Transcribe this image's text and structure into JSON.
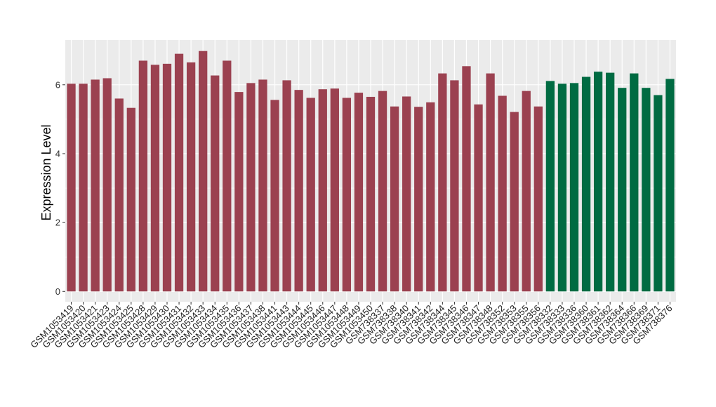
{
  "chart_data": {
    "type": "bar",
    "title": "",
    "xlabel": "",
    "ylabel": "Expression Level",
    "ylim": [
      -0.3,
      7.3
    ],
    "yticks": [
      0,
      2,
      4,
      6
    ],
    "grid": true,
    "legend": "none",
    "categories": [
      "GSM1053419",
      "GSM1053420",
      "GSM1053421",
      "GSM1053423",
      "GSM1053424",
      "GSM1053425",
      "GSM1053428",
      "GSM1053429",
      "GSM1053430",
      "GSM1053431",
      "GSM1053432",
      "GSM1053433",
      "GSM1053434",
      "GSM1053435",
      "GSM1053436",
      "GSM1053437",
      "GSM1053438",
      "GSM1053441",
      "GSM1053443",
      "GSM1053444",
      "GSM1053445",
      "GSM1053446",
      "GSM1053447",
      "GSM1053448",
      "GSM1053449",
      "GSM1053450",
      "GSM738337",
      "GSM738338",
      "GSM738340",
      "GSM738341",
      "GSM738342",
      "GSM738344",
      "GSM738345",
      "GSM738346",
      "GSM738347",
      "GSM738348",
      "GSM738352",
      "GSM738353",
      "GSM738355",
      "GSM738356",
      "GSM738332",
      "GSM738333",
      "GSM738336",
      "GSM738360",
      "GSM738361",
      "GSM738362",
      "GSM738364",
      "GSM738366",
      "GSM738369",
      "GSM738371",
      "GSM738376"
    ],
    "values": [
      6.03,
      6.03,
      6.15,
      6.19,
      5.6,
      5.33,
      6.7,
      6.58,
      6.61,
      6.9,
      6.65,
      6.98,
      6.27,
      6.7,
      5.79,
      6.05,
      6.15,
      5.56,
      6.13,
      5.85,
      5.62,
      5.87,
      5.89,
      5.62,
      5.77,
      5.65,
      5.82,
      5.37,
      5.66,
      5.36,
      5.49,
      6.33,
      6.13,
      6.54,
      5.43,
      6.33,
      5.68,
      5.21,
      5.82,
      5.37,
      6.11,
      6.03,
      6.05,
      6.23,
      6.38,
      6.35,
      5.91,
      6.33,
      5.91,
      5.7,
      6.17
    ],
    "colors": [
      "#9b4150",
      "#9b4150",
      "#9b4150",
      "#9b4150",
      "#9b4150",
      "#9b4150",
      "#9b4150",
      "#9b4150",
      "#9b4150",
      "#9b4150",
      "#9b4150",
      "#9b4150",
      "#9b4150",
      "#9b4150",
      "#9b4150",
      "#9b4150",
      "#9b4150",
      "#9b4150",
      "#9b4150",
      "#9b4150",
      "#9b4150",
      "#9b4150",
      "#9b4150",
      "#9b4150",
      "#9b4150",
      "#9b4150",
      "#9b4150",
      "#9b4150",
      "#9b4150",
      "#9b4150",
      "#9b4150",
      "#9b4150",
      "#9b4150",
      "#9b4150",
      "#9b4150",
      "#9b4150",
      "#9b4150",
      "#9b4150",
      "#9b4150",
      "#9b4150",
      "#006b42",
      "#006b42",
      "#006b42",
      "#006b42",
      "#006b42",
      "#006b42",
      "#006b42",
      "#006b42",
      "#006b42",
      "#006b42",
      "#006b42"
    ],
    "panel_background": "#ebebeb",
    "grid_color": "#ffffff"
  }
}
